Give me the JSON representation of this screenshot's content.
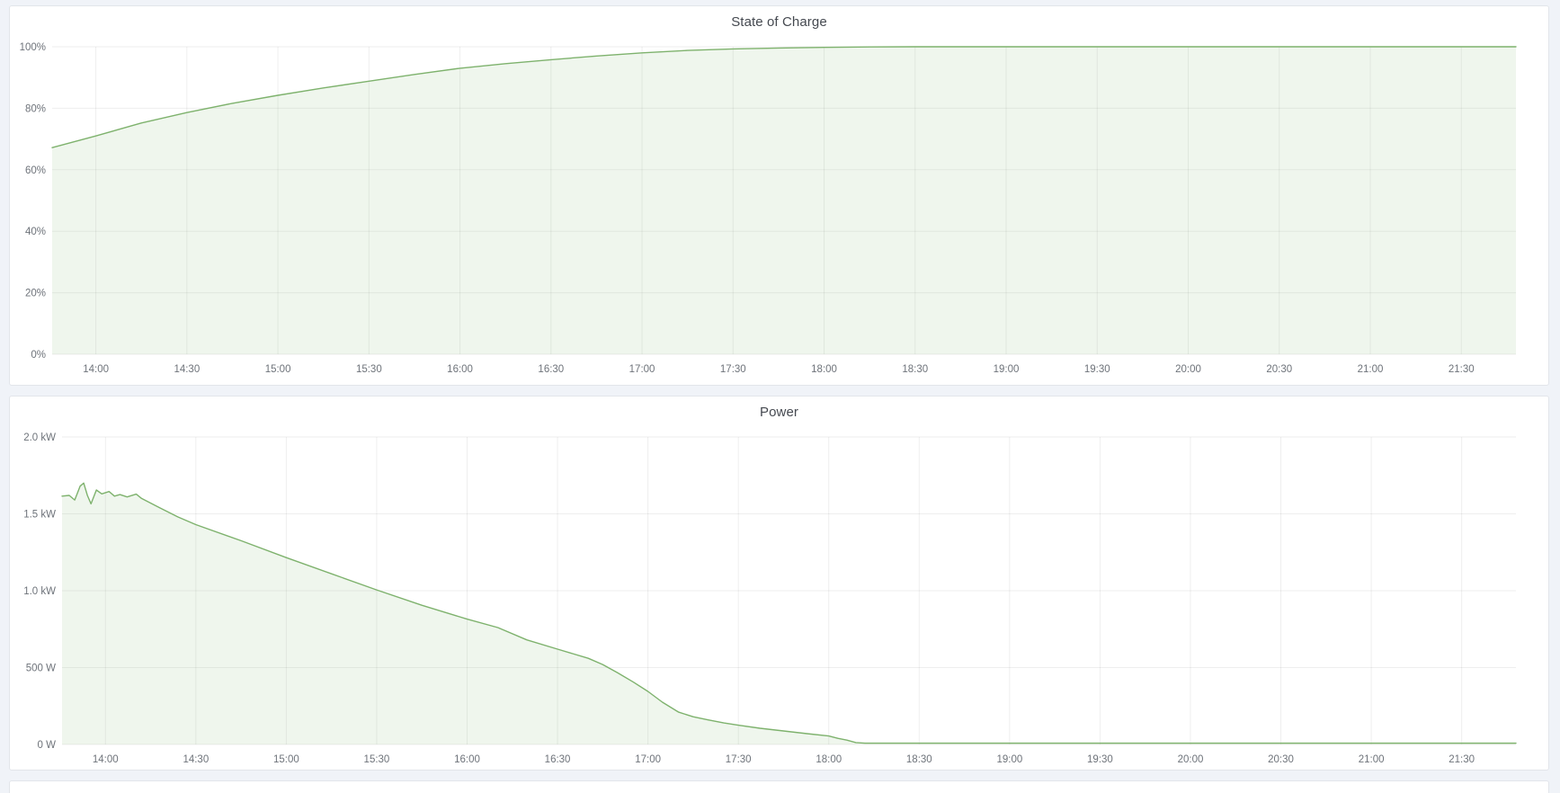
{
  "page": {
    "background": "#f0f3f8",
    "panel_background": "#ffffff",
    "panel_border": "#e2e5ea",
    "grid_color": "rgba(0,0,0,0.065)",
    "tick_text_color": "#6e737a",
    "title_text_color": "#454950"
  },
  "chart_data": [
    {
      "type": "area",
      "title": "State of Charge",
      "unit": "%",
      "line_color": "#7eb26d",
      "fill_color": "rgba(126,178,109,0.12)",
      "legend": "none",
      "grid": "on",
      "ylim": [
        0,
        100
      ],
      "xlim_hours": [
        13.76,
        21.8
      ],
      "y_ticks": [
        {
          "v": 0,
          "label": "0%"
        },
        {
          "v": 20,
          "label": "20%"
        },
        {
          "v": 40,
          "label": "40%"
        },
        {
          "v": 60,
          "label": "60%"
        },
        {
          "v": 80,
          "label": "80%"
        },
        {
          "v": 100,
          "label": "100%"
        }
      ],
      "x_ticks": [
        {
          "h": 14,
          "label": "14:00"
        },
        {
          "h": 14.5,
          "label": "14:30"
        },
        {
          "h": 15,
          "label": "15:00"
        },
        {
          "h": 15.5,
          "label": "15:30"
        },
        {
          "h": 16,
          "label": "16:00"
        },
        {
          "h": 16.5,
          "label": "16:30"
        },
        {
          "h": 17,
          "label": "17:00"
        },
        {
          "h": 17.5,
          "label": "17:30"
        },
        {
          "h": 18,
          "label": "18:00"
        },
        {
          "h": 18.5,
          "label": "18:30"
        },
        {
          "h": 19,
          "label": "19:00"
        },
        {
          "h": 19.5,
          "label": "19:30"
        },
        {
          "h": 20,
          "label": "20:00"
        },
        {
          "h": 20.5,
          "label": "20:30"
        },
        {
          "h": 21,
          "label": "21:00"
        },
        {
          "h": 21.5,
          "label": "21:30"
        }
      ],
      "series": [
        {
          "name": "State of Charge",
          "points": [
            [
              13.76,
              67.2
            ],
            [
              14.0,
              71.0
            ],
            [
              14.25,
              75.2
            ],
            [
              14.5,
              78.6
            ],
            [
              14.75,
              81.6
            ],
            [
              15.0,
              84.2
            ],
            [
              15.25,
              86.6
            ],
            [
              15.5,
              88.8
            ],
            [
              15.75,
              91.0
            ],
            [
              16.0,
              93.0
            ],
            [
              16.25,
              94.5
            ],
            [
              16.5,
              95.8
            ],
            [
              16.75,
              97.0
            ],
            [
              17.0,
              98.0
            ],
            [
              17.25,
              98.8
            ],
            [
              17.5,
              99.3
            ],
            [
              17.75,
              99.6
            ],
            [
              18.0,
              99.8
            ],
            [
              18.25,
              99.95
            ],
            [
              18.5,
              100
            ],
            [
              19.0,
              100
            ],
            [
              19.5,
              100
            ],
            [
              20.0,
              100
            ],
            [
              20.5,
              100
            ],
            [
              21.0,
              100
            ],
            [
              21.5,
              100
            ],
            [
              21.8,
              100
            ]
          ]
        }
      ]
    },
    {
      "type": "area",
      "title": "Power",
      "unit": "W",
      "line_color": "#7eb26d",
      "fill_color": "rgba(126,178,109,0.12)",
      "legend": "none",
      "grid": "on",
      "ylim": [
        0,
        2000
      ],
      "xlim_hours": [
        13.76,
        21.8
      ],
      "y_ticks": [
        {
          "v": 0,
          "label": "0 W"
        },
        {
          "v": 500,
          "label": "500 W"
        },
        {
          "v": 1000,
          "label": "1.0 kW"
        },
        {
          "v": 1500,
          "label": "1.5 kW"
        },
        {
          "v": 2000,
          "label": "2.0 kW"
        }
      ],
      "x_ticks": [
        {
          "h": 14,
          "label": "14:00"
        },
        {
          "h": 14.5,
          "label": "14:30"
        },
        {
          "h": 15,
          "label": "15:00"
        },
        {
          "h": 15.5,
          "label": "15:30"
        },
        {
          "h": 16,
          "label": "16:00"
        },
        {
          "h": 16.5,
          "label": "16:30"
        },
        {
          "h": 17,
          "label": "17:00"
        },
        {
          "h": 17.5,
          "label": "17:30"
        },
        {
          "h": 18,
          "label": "18:00"
        },
        {
          "h": 18.5,
          "label": "18:30"
        },
        {
          "h": 19,
          "label": "19:00"
        },
        {
          "h": 19.5,
          "label": "19:30"
        },
        {
          "h": 20,
          "label": "20:00"
        },
        {
          "h": 20.5,
          "label": "20:30"
        },
        {
          "h": 21,
          "label": "21:00"
        },
        {
          "h": 21.5,
          "label": "21:30"
        }
      ],
      "series": [
        {
          "name": "Power",
          "points": [
            [
              13.76,
              1615
            ],
            [
              13.8,
              1620
            ],
            [
              13.83,
              1590
            ],
            [
              13.86,
              1680
            ],
            [
              13.88,
              1700
            ],
            [
              13.9,
              1620
            ],
            [
              13.92,
              1565
            ],
            [
              13.95,
              1655
            ],
            [
              13.98,
              1630
            ],
            [
              14.02,
              1645
            ],
            [
              14.05,
              1615
            ],
            [
              14.08,
              1625
            ],
            [
              14.12,
              1610
            ],
            [
              14.17,
              1628
            ],
            [
              14.2,
              1600
            ],
            [
              14.3,
              1540
            ],
            [
              14.4,
              1480
            ],
            [
              14.5,
              1430
            ],
            [
              14.75,
              1325
            ],
            [
              15.0,
              1215
            ],
            [
              15.25,
              1110
            ],
            [
              15.5,
              1005
            ],
            [
              15.75,
              905
            ],
            [
              16.0,
              815
            ],
            [
              16.17,
              760
            ],
            [
              16.33,
              680
            ],
            [
              16.5,
              620
            ],
            [
              16.67,
              560
            ],
            [
              16.75,
              520
            ],
            [
              16.83,
              468
            ],
            [
              16.92,
              405
            ],
            [
              17.0,
              345
            ],
            [
              17.08,
              275
            ],
            [
              17.17,
              210
            ],
            [
              17.25,
              180
            ],
            [
              17.33,
              160
            ],
            [
              17.42,
              140
            ],
            [
              17.5,
              125
            ],
            [
              17.62,
              105
            ],
            [
              17.75,
              88
            ],
            [
              17.88,
              70
            ],
            [
              18.0,
              55
            ],
            [
              18.05,
              40
            ],
            [
              18.1,
              28
            ],
            [
              18.15,
              12
            ],
            [
              18.2,
              8
            ],
            [
              18.5,
              8
            ],
            [
              19.0,
              8
            ],
            [
              19.5,
              8
            ],
            [
              20.0,
              8
            ],
            [
              20.5,
              8
            ],
            [
              21.0,
              8
            ],
            [
              21.5,
              8
            ],
            [
              21.8,
              8
            ]
          ]
        }
      ]
    }
  ]
}
